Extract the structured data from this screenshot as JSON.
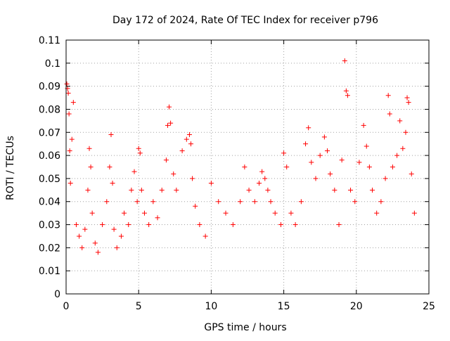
{
  "chart_data": {
    "type": "scatter",
    "title": "Day 172 of 2024, Rate Of TEC Index for receiver p796",
    "xlabel": "GPS time / hours",
    "ylabel": "ROTI / TECUs",
    "xlim": [
      0,
      25
    ],
    "ylim": [
      0,
      0.11
    ],
    "x_ticks": [
      "0",
      "5",
      "10",
      "15",
      "20",
      "25"
    ],
    "y_ticks": [
      "0",
      "0.01",
      "0.02",
      "0.03",
      "0.04",
      "0.05",
      "0.06",
      "0.07",
      "0.08",
      "0.09",
      "0.1",
      "0.11"
    ],
    "grid": true,
    "marker": "+",
    "color": "#ff0000",
    "series": [
      {
        "x": [
          0.05,
          0.1,
          0.15,
          0.2,
          0.25,
          0.3,
          0.4,
          0.5,
          0.7,
          0.9,
          1.1,
          1.3,
          1.5,
          1.6,
          1.7,
          1.8,
          2.0,
          2.2,
          2.5,
          2.8,
          3.0,
          3.1,
          3.2,
          3.3,
          3.5,
          3.8,
          4.0,
          4.3,
          4.5,
          4.7,
          4.9,
          5.0,
          5.1,
          5.2,
          5.4,
          5.7,
          6.0,
          6.3,
          6.6,
          6.9,
          7.0,
          7.1,
          7.2,
          7.4,
          7.6,
          8.0,
          8.3,
          8.5,
          8.6,
          8.7,
          8.9,
          9.2,
          9.6,
          10.0,
          10.5,
          11.0,
          11.5,
          12.0,
          12.3,
          12.6,
          13.0,
          13.3,
          13.5,
          13.7,
          13.9,
          14.1,
          14.4,
          14.8,
          15.0,
          15.2,
          15.5,
          15.8,
          16.2,
          16.5,
          16.7,
          16.9,
          17.2,
          17.5,
          17.8,
          18.0,
          18.2,
          18.5,
          18.8,
          19.0,
          19.2,
          19.3,
          19.4,
          19.6,
          19.9,
          20.2,
          20.5,
          20.7,
          20.9,
          21.1,
          21.4,
          21.7,
          22.0,
          22.2,
          22.3,
          22.5,
          22.8,
          23.0,
          23.2,
          23.4,
          23.5,
          23.6,
          23.8,
          24.0
        ],
        "y": [
          0.091,
          0.089,
          0.087,
          0.078,
          0.062,
          0.048,
          0.067,
          0.083,
          0.03,
          0.025,
          0.02,
          0.028,
          0.045,
          0.063,
          0.055,
          0.035,
          0.022,
          0.018,
          0.03,
          0.04,
          0.055,
          0.069,
          0.048,
          0.028,
          0.02,
          0.025,
          0.035,
          0.03,
          0.045,
          0.053,
          0.04,
          0.063,
          0.061,
          0.045,
          0.035,
          0.03,
          0.04,
          0.033,
          0.045,
          0.058,
          0.073,
          0.081,
          0.074,
          0.052,
          0.045,
          0.062,
          0.067,
          0.069,
          0.065,
          0.05,
          0.038,
          0.03,
          0.025,
          0.048,
          0.04,
          0.035,
          0.03,
          0.04,
          0.055,
          0.045,
          0.04,
          0.048,
          0.053,
          0.05,
          0.045,
          0.04,
          0.035,
          0.03,
          0.061,
          0.055,
          0.035,
          0.03,
          0.04,
          0.065,
          0.072,
          0.057,
          0.05,
          0.06,
          0.068,
          0.062,
          0.052,
          0.045,
          0.03,
          0.058,
          0.101,
          0.088,
          0.086,
          0.045,
          0.04,
          0.057,
          0.073,
          0.064,
          0.055,
          0.045,
          0.035,
          0.04,
          0.05,
          0.086,
          0.078,
          0.055,
          0.06,
          0.075,
          0.063,
          0.07,
          0.085,
          0.083,
          0.052,
          0.035
        ]
      }
    ]
  }
}
